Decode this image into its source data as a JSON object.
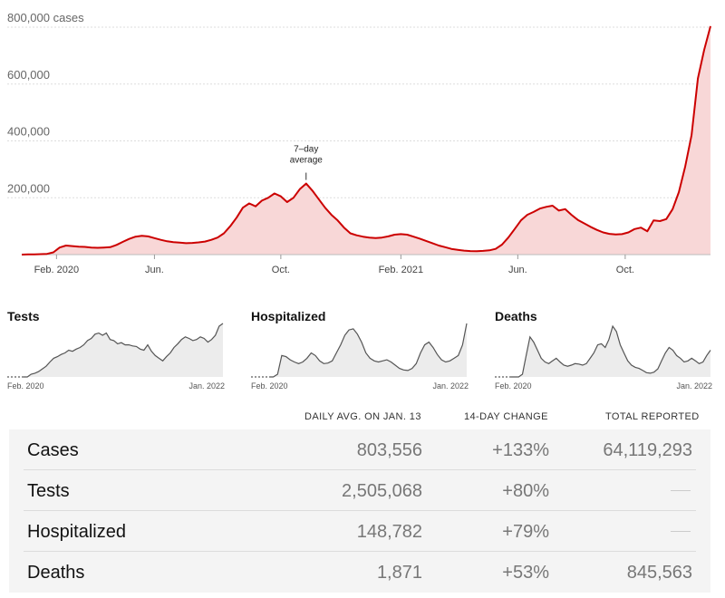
{
  "chart_data": [
    {
      "type": "area",
      "title": "Cases",
      "y_unit_label": "800,000 cases",
      "y_ticks": [
        "200,000",
        "400,000",
        "600,000"
      ],
      "x_tick_labels": [
        "Feb. 2020",
        "Jun.",
        "Oct.",
        "Feb. 2021",
        "Jun.",
        "Oct."
      ],
      "ylim": [
        0,
        800000
      ],
      "annotation": "7-day average",
      "annotation_lines": [
        "7–day",
        "average"
      ],
      "series": [
        {
          "name": "7-day average cases",
          "x_index_range": [
            0,
            23.5
          ],
          "points": [
            [
              0,
              0
            ],
            [
              1,
              500
            ],
            [
              2,
              900
            ],
            [
              3,
              1500
            ],
            [
              4,
              2500
            ],
            [
              5,
              8000
            ],
            [
              6,
              25000
            ],
            [
              7,
              32000
            ],
            [
              8,
              30000
            ],
            [
              9,
              28000
            ],
            [
              10,
              27000
            ],
            [
              11,
              25000
            ],
            [
              12,
              24000
            ],
            [
              13,
              25000
            ],
            [
              14,
              26000
            ],
            [
              15,
              34000
            ],
            [
              16,
              45000
            ],
            [
              17,
              55000
            ],
            [
              18,
              63000
            ],
            [
              19,
              66000
            ],
            [
              20,
              64000
            ],
            [
              21,
              58000
            ],
            [
              22,
              52000
            ],
            [
              23,
              47000
            ],
            [
              24,
              44000
            ],
            [
              25,
              42000
            ],
            [
              26,
              40000
            ],
            [
              27,
              41000
            ],
            [
              28,
              43000
            ],
            [
              29,
              46000
            ],
            [
              30,
              52000
            ],
            [
              31,
              60000
            ],
            [
              32,
              75000
            ],
            [
              33,
              100000
            ],
            [
              34,
              130000
            ],
            [
              35,
              165000
            ],
            [
              36,
              180000
            ],
            [
              37,
              170000
            ],
            [
              38,
              190000
            ],
            [
              39,
              200000
            ],
            [
              40,
              215000
            ],
            [
              41,
              205000
            ],
            [
              42,
              185000
            ],
            [
              43,
              200000
            ],
            [
              44,
              230000
            ],
            [
              45,
              250000
            ],
            [
              46,
              225000
            ],
            [
              47,
              195000
            ],
            [
              48,
              165000
            ],
            [
              49,
              140000
            ],
            [
              50,
              120000
            ],
            [
              51,
              95000
            ],
            [
              52,
              75000
            ],
            [
              53,
              68000
            ],
            [
              54,
              63000
            ],
            [
              55,
              60000
            ],
            [
              56,
              58000
            ],
            [
              57,
              60000
            ],
            [
              58,
              64000
            ],
            [
              59,
              70000
            ],
            [
              60,
              72000
            ],
            [
              61,
              70000
            ],
            [
              62,
              63000
            ],
            [
              63,
              56000
            ],
            [
              64,
              48000
            ],
            [
              65,
              40000
            ],
            [
              66,
              32000
            ],
            [
              67,
              26000
            ],
            [
              68,
              20000
            ],
            [
              69,
              17000
            ],
            [
              70,
              14000
            ],
            [
              71,
              12500
            ],
            [
              72,
              12000
            ],
            [
              73,
              13000
            ],
            [
              74,
              15000
            ],
            [
              75,
              20000
            ],
            [
              76,
              35000
            ],
            [
              77,
              60000
            ],
            [
              78,
              90000
            ],
            [
              79,
              120000
            ],
            [
              80,
              140000
            ],
            [
              81,
              150000
            ],
            [
              82,
              162000
            ],
            [
              83,
              168000
            ],
            [
              84,
              172000
            ],
            [
              85,
              155000
            ],
            [
              86,
              160000
            ],
            [
              87,
              140000
            ],
            [
              88,
              122000
            ],
            [
              89,
              110000
            ],
            [
              90,
              98000
            ],
            [
              91,
              87000
            ],
            [
              92,
              78000
            ],
            [
              93,
              73000
            ],
            [
              94,
              71000
            ],
            [
              95,
              72000
            ],
            [
              96,
              78000
            ],
            [
              97,
              90000
            ],
            [
              98,
              95000
            ],
            [
              99,
              82000
            ],
            [
              100,
              120000
            ],
            [
              101,
              118000
            ],
            [
              102,
              125000
            ],
            [
              103,
              160000
            ],
            [
              104,
              220000
            ],
            [
              105,
              310000
            ],
            [
              106,
              420000
            ],
            [
              107,
              620000
            ],
            [
              108,
              720000
            ],
            [
              109,
              803556
            ]
          ]
        }
      ]
    },
    {
      "type": "area",
      "title": "Tests",
      "x_tick_labels": [
        "Feb. 2020",
        "Jan. 2022"
      ],
      "series": [
        {
          "name": "Tests",
          "values": [
            0,
            0,
            0.05,
            0.07,
            0.1,
            0.15,
            0.2,
            0.28,
            0.35,
            0.38,
            0.42,
            0.45,
            0.5,
            0.48,
            0.52,
            0.55,
            0.6,
            0.68,
            0.72,
            0.8,
            0.82,
            0.78,
            0.82,
            0.7,
            0.68,
            0.62,
            0.64,
            0.6,
            0.6,
            0.58,
            0.57,
            0.52,
            0.5,
            0.6,
            0.48,
            0.4,
            0.35,
            0.3,
            0.38,
            0.45,
            0.55,
            0.62,
            0.7,
            0.75,
            0.72,
            0.68,
            0.7,
            0.75,
            0.72,
            0.65,
            0.7,
            0.78,
            0.95,
            1.0
          ]
        }
      ]
    },
    {
      "type": "area",
      "title": "Hospitalized",
      "x_tick_labels": [
        "Feb. 2020",
        "Jan. 2022"
      ],
      "series": [
        {
          "name": "Hospitalized",
          "values": [
            0,
            0,
            0.05,
            0.4,
            0.38,
            0.32,
            0.28,
            0.25,
            0.28,
            0.35,
            0.45,
            0.4,
            0.3,
            0.25,
            0.26,
            0.3,
            0.45,
            0.6,
            0.78,
            0.88,
            0.9,
            0.8,
            0.65,
            0.45,
            0.35,
            0.3,
            0.28,
            0.3,
            0.32,
            0.28,
            0.22,
            0.16,
            0.13,
            0.12,
            0.16,
            0.25,
            0.45,
            0.6,
            0.65,
            0.55,
            0.42,
            0.32,
            0.28,
            0.3,
            0.35,
            0.4,
            0.6,
            1.0
          ]
        }
      ]
    },
    {
      "type": "area",
      "title": "Deaths",
      "x_tick_labels": [
        "Feb. 2020",
        "Jan. 2022"
      ],
      "series": [
        {
          "name": "Deaths",
          "values": [
            0,
            0,
            0,
            0.05,
            0.4,
            0.75,
            0.65,
            0.5,
            0.35,
            0.28,
            0.25,
            0.3,
            0.35,
            0.28,
            0.22,
            0.2,
            0.22,
            0.25,
            0.24,
            0.22,
            0.25,
            0.35,
            0.45,
            0.6,
            0.62,
            0.55,
            0.7,
            0.95,
            0.85,
            0.6,
            0.45,
            0.3,
            0.22,
            0.18,
            0.16,
            0.12,
            0.08,
            0.07,
            0.09,
            0.15,
            0.3,
            0.45,
            0.55,
            0.5,
            0.4,
            0.35,
            0.28,
            0.3,
            0.35,
            0.3,
            0.25,
            0.28,
            0.4,
            0.5
          ]
        }
      ]
    },
    {
      "type": "table",
      "columns": [
        "",
        "DAILY AVG. ON JAN. 13",
        "14-DAY CHANGE",
        "TOTAL REPORTED"
      ],
      "rows": [
        {
          "label": "Cases",
          "daily": "803,556",
          "change": "+133%",
          "total": "64,119,293"
        },
        {
          "label": "Tests",
          "daily": "2,505,068",
          "change": "+80%",
          "total": ""
        },
        {
          "label": "Hospitalized",
          "daily": "148,782",
          "change": "+79%",
          "total": ""
        },
        {
          "label": "Deaths",
          "daily": "1,871",
          "change": "+53%",
          "total": "845,563"
        }
      ]
    }
  ],
  "colors": {
    "cases_line": "#cc0000",
    "cases_fill": "#f8d7d7",
    "small_line": "#555555",
    "small_fill": "#ececec",
    "grid": "#dddddd",
    "axis_text": "#666666"
  }
}
